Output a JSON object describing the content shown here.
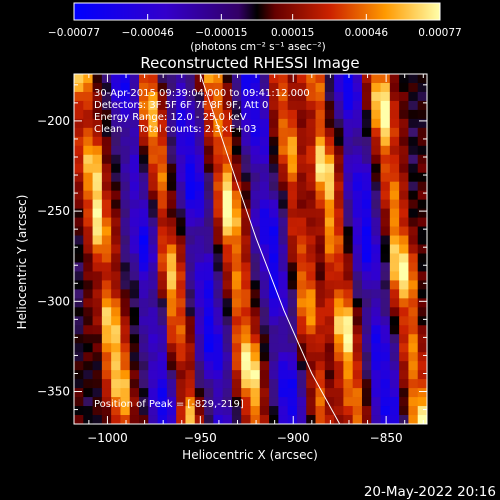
{
  "chart_data": {
    "type": "heatmap",
    "title": "Reconstructed RHESSI Image",
    "xlabel": "Heliocentric X (arcsec)",
    "ylabel": "Heliocentric Y (arcsec)",
    "xlim": [
      -1018,
      -828
    ],
    "ylim": [
      -368,
      -174
    ],
    "x_ticks": [
      -1000,
      -950,
      -900,
      -850
    ],
    "y_ticks": [
      -200,
      -250,
      -300,
      -350
    ],
    "colorbar": {
      "vmin": -0.00077,
      "vmax": 0.00077,
      "ticks": [
        -0.00077,
        -0.00046,
        -0.00015,
        0.00015,
        0.00046,
        0.00077
      ],
      "tick_labels": [
        "-0.00077",
        "-0.00046",
        "-0.00015",
        "0.00015",
        "0.00046",
        "0.00077"
      ],
      "units_label": "(photons cm⁻² s⁻¹ asec⁻²)"
    },
    "annotations": {
      "time_range": "30-Apr-2015 09:39:04.000 to 09:41:12.000",
      "detectors": "Detectors: 3F 5F 6F 7F 8F 9F, Att 0",
      "energy_range": "Energy Range: 12.0 - 25.0 keV",
      "clean_counts": "Clean     Total counts: 2.3×E+03",
      "peak_position": "Position of Peak = [-829,-219]"
    },
    "peak": {
      "x": -829,
      "y": -219
    },
    "limb_curve": {
      "x": [
        -950,
        -935,
        -920,
        -905,
        -890,
        -875
      ],
      "y": [
        -174,
        -220,
        -265,
        -305,
        -340,
        -368
      ]
    },
    "bands": [
      {
        "x": -1003,
        "amp": 1.0,
        "sign": 1
      },
      {
        "x": -980,
        "amp": 0.8,
        "sign": -1
      },
      {
        "x": -968,
        "amp": 0.85,
        "sign": 1
      },
      {
        "x": -950,
        "amp": 0.9,
        "sign": -1
      },
      {
        "x": -932,
        "amp": 1.0,
        "sign": 1
      },
      {
        "x": -912,
        "amp": 0.9,
        "sign": -1
      },
      {
        "x": -896,
        "amp": 0.7,
        "sign": 1
      },
      {
        "x": -878,
        "amp": 0.95,
        "sign": 1
      },
      {
        "x": -860,
        "amp": 0.9,
        "sign": -1
      },
      {
        "x": -843,
        "amp": 1.0,
        "sign": 1
      }
    ]
  },
  "footer": {
    "timestamp": "20-May-2022 20:16"
  },
  "colors": {
    "background": "#000000",
    "text": "#ffffff",
    "limb": "#ffffff"
  }
}
